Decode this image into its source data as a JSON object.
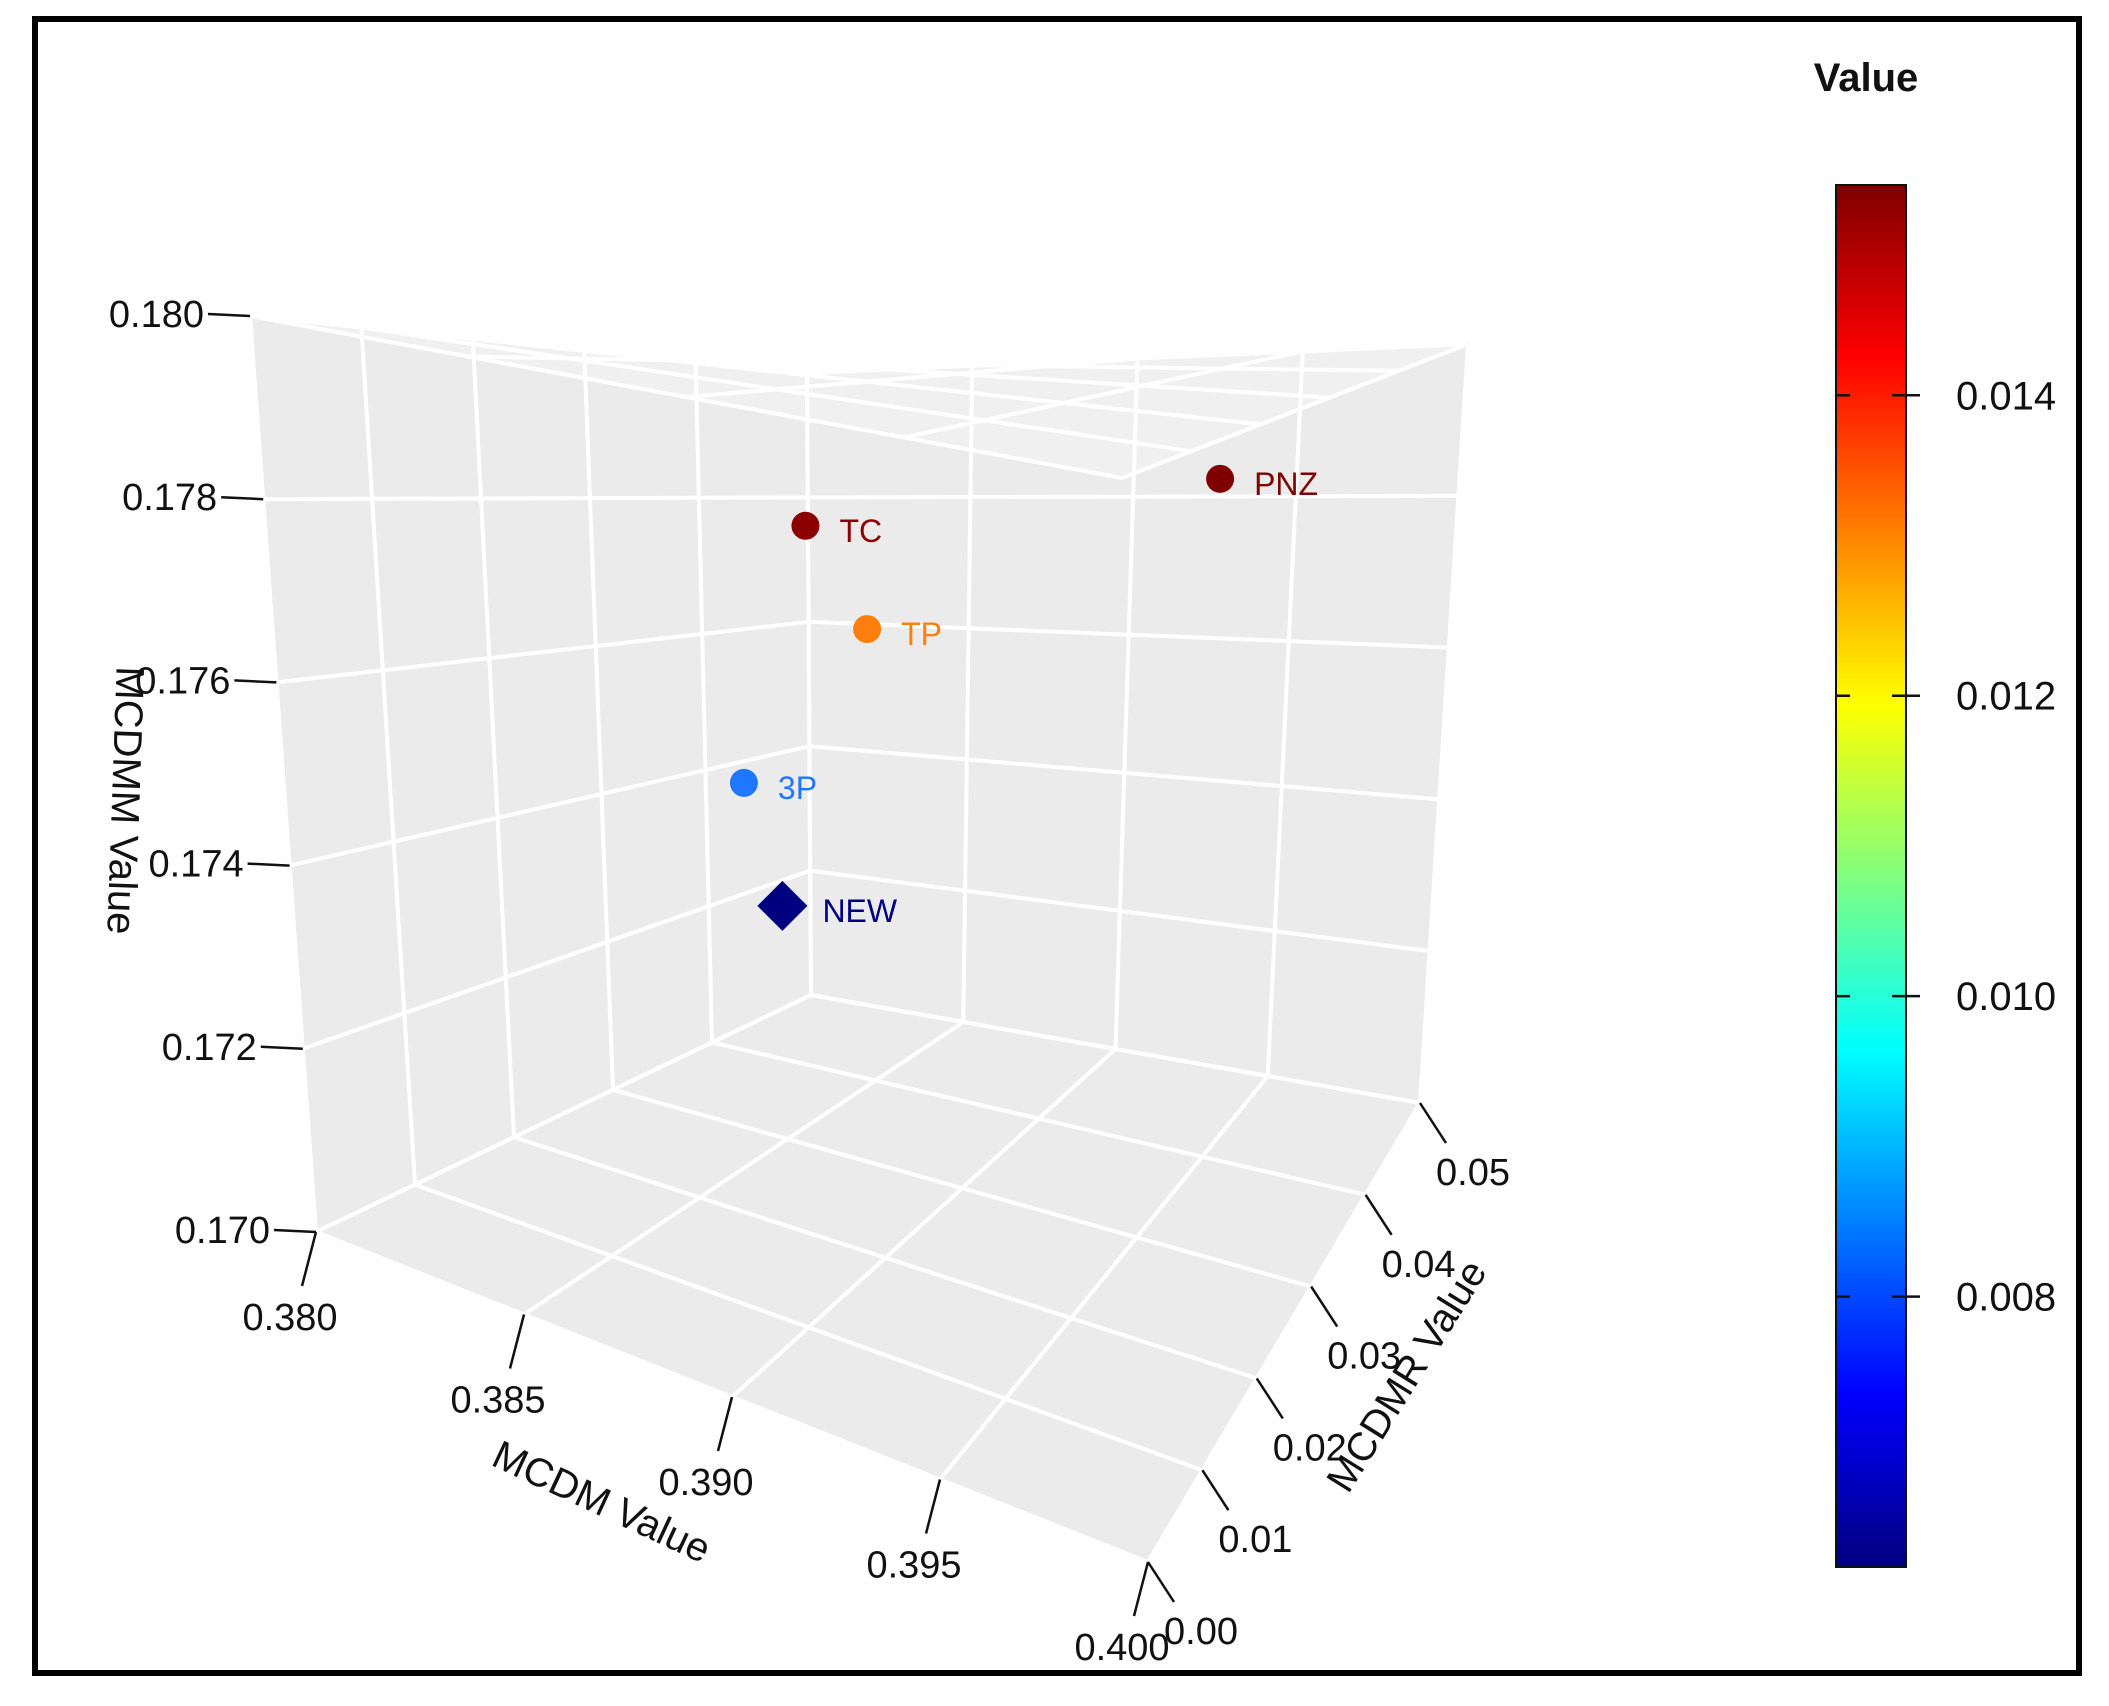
{
  "chart_data": {
    "type": "scatter3d",
    "title": "",
    "axes": {
      "x": {
        "label": "MCDM Value",
        "range": [
          0.38,
          0.4
        ],
        "ticks": [
          "0.380",
          "0.385",
          "0.390",
          "0.395",
          "0.400"
        ]
      },
      "y": {
        "label": "MCDMR Value",
        "range": [
          0.0,
          0.05
        ],
        "ticks": [
          "0.00",
          "0.01",
          "0.02",
          "0.03",
          "0.04",
          "0.05"
        ]
      },
      "z": {
        "label": "MCDMM Value",
        "range": [
          0.17,
          0.18
        ],
        "ticks": [
          "0.170",
          "0.172",
          "0.174",
          "0.176",
          "0.178",
          "0.180"
        ]
      }
    },
    "points": [
      {
        "label": "TC",
        "mcdm": 0.3845,
        "mcdmr": 0.035,
        "mcdmm": 0.1778,
        "value": 0.0155,
        "marker": "circle",
        "color": "#8b0000"
      },
      {
        "label": "PNZ",
        "mcdm": 0.395,
        "mcdmr": 0.04,
        "mcdmm": 0.1786,
        "value": 0.0155,
        "marker": "circle",
        "color": "#800000"
      },
      {
        "label": "TP",
        "mcdm": 0.3862,
        "mcdmr": 0.035,
        "mcdmm": 0.1765,
        "value": 0.0132,
        "marker": "circle",
        "color": "#ff7f0e"
      },
      {
        "label": "3P",
        "mcdm": 0.384,
        "mcdmr": 0.03,
        "mcdmm": 0.1745,
        "value": 0.0085,
        "marker": "circle",
        "color": "#1f77ff"
      },
      {
        "label": "NEW",
        "mcdm": 0.385,
        "mcdmr": 0.03,
        "mcdmm": 0.173,
        "value": 0.0063,
        "marker": "diamond",
        "color": "#000080"
      }
    ],
    "colorbar": {
      "title": "Value",
      "range": [
        0.0062,
        0.0154
      ],
      "ticks": [
        0.008,
        0.01,
        0.012,
        0.014
      ],
      "tick_labels": [
        "0.008",
        "0.010",
        "0.012",
        "0.014"
      ],
      "colors": [
        "#00007f",
        "#0000ff",
        "#007fff",
        "#00ffff",
        "#7fff7f",
        "#ffff00",
        "#ff7f00",
        "#ff0000",
        "#7f0000"
      ]
    },
    "pane_color": "#ebebeb",
    "grid_color": "#ffffff"
  }
}
